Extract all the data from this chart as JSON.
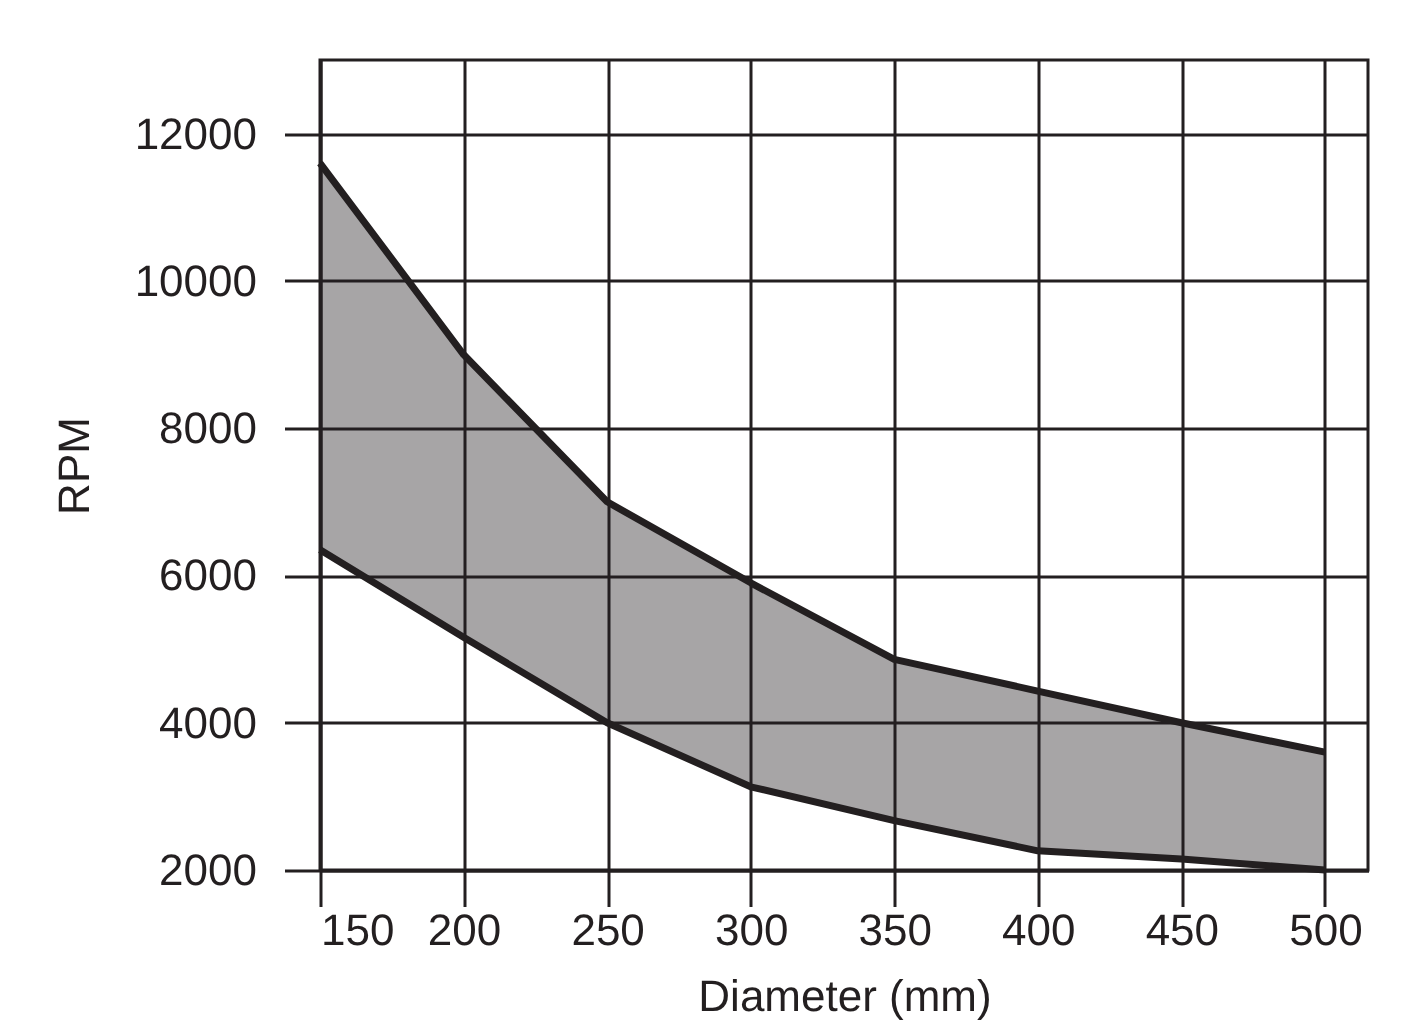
{
  "chart_data": {
    "type": "line",
    "xlabel": "Diameter (mm)",
    "ylabel": "RPM",
    "x": [
      150,
      200,
      250,
      300,
      350,
      400,
      450,
      500
    ],
    "series": [
      {
        "type": "line",
        "color": "#231f20",
        "values": [
          11600,
          9000,
          7000,
          5900,
          4860,
          4430,
          4000,
          3600
        ],
        "lower": [
          6350,
          5160,
          4000,
          3130,
          2670,
          2260,
          2150,
          2000
        ],
        "upper": [
          11600,
          9000,
          7000,
          5900,
          4860,
          4430,
          4000,
          3600
        ]
      },
      {
        "type": "line",
        "color": "#231f20",
        "values": [
          6350,
          5160,
          4000,
          3130,
          2670,
          2260,
          2150,
          2000
        ]
      }
    ],
    "xlim": [
      150,
      515
    ],
    "ylim": [
      2000,
      13000
    ],
    "xticks": [
      150,
      200,
      250,
      300,
      350,
      400,
      450,
      500
    ],
    "yticks": [
      2000,
      4000,
      6000,
      8000,
      10000,
      12000
    ],
    "grid": true,
    "legend": false,
    "line_style": "solid",
    "marker": "none"
  }
}
